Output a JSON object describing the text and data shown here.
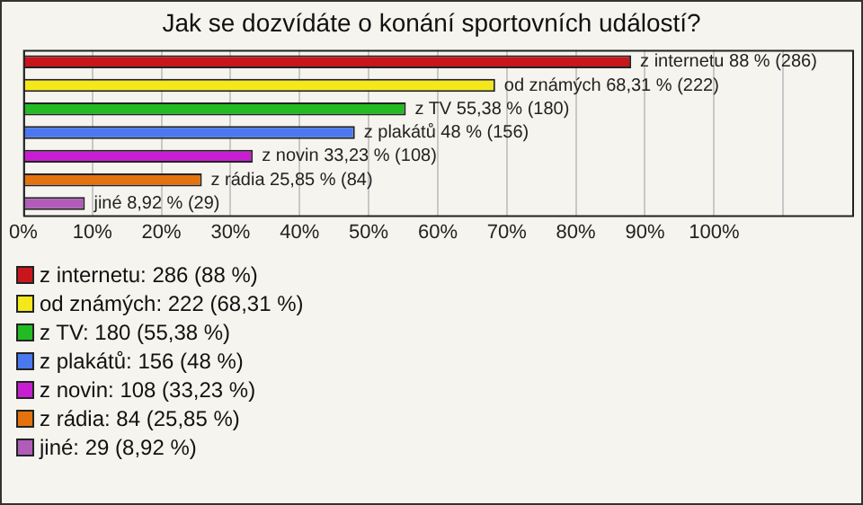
{
  "chart_data": {
    "type": "bar",
    "orientation": "horizontal",
    "stacked": true,
    "title": "Jak se dozvídáte o konání sportovních událostí?",
    "categories": [
      null,
      null,
      null,
      null,
      null,
      null,
      null
    ],
    "series": [
      {
        "name": "z internetu: 286 (88 %)",
        "color": "#c8161c",
        "values": [
          88,
          null,
          null,
          null,
          null,
          null,
          null
        ],
        "value_labels": [
          "z internetu 88 % (286)",
          null,
          null,
          null,
          null,
          null,
          null
        ]
      },
      {
        "name": "od známých: 222 (68,31 %)",
        "color": "#f5e81a",
        "values": [
          null,
          68.31,
          null,
          null,
          null,
          null,
          null
        ],
        "value_labels": [
          null,
          "od známých 68,31 % (222)",
          null,
          null,
          null,
          null,
          null
        ]
      },
      {
        "name": "z TV: 180 (55,38 %)",
        "color": "#22bb22",
        "values": [
          null,
          null,
          55.38,
          null,
          null,
          null,
          null
        ],
        "value_labels": [
          null,
          null,
          "z TV 55,38 % (180)",
          null,
          null,
          null,
          null
        ]
      },
      {
        "name": "z plakátů: 156 (48 %)",
        "color": "#4a78ee",
        "values": [
          null,
          null,
          null,
          48,
          null,
          null,
          null
        ],
        "value_labels": [
          null,
          null,
          null,
          "z plakátů 48 % (156)",
          null,
          null,
          null
        ]
      },
      {
        "name": "z novin: 108 (33,23 %)",
        "color": "#c81ed2",
        "values": [
          null,
          null,
          null,
          null,
          33.23,
          null,
          null
        ],
        "value_labels": [
          null,
          null,
          null,
          null,
          "z novin 33,23 % (108)",
          null,
          null
        ]
      },
      {
        "name": "z rádia: 84 (25,85 %)",
        "color": "#e4720e",
        "values": [
          null,
          null,
          null,
          null,
          null,
          25.85,
          null
        ],
        "value_labels": [
          null,
          null,
          null,
          null,
          null,
          "z rádia 25,85 % (84)",
          null
        ]
      },
      {
        "name": "jiné: 29 (8,92 %)",
        "color": "#b05cb8",
        "values": [
          null,
          null,
          null,
          null,
          null,
          null,
          8.92
        ],
        "value_labels": [
          null,
          null,
          null,
          null,
          null,
          null,
          "jiné 8,92 % (29)"
        ]
      }
    ],
    "xlim": [
      0,
      120
    ],
    "xticks": [
      {
        "value": 0,
        "label": "0%"
      },
      {
        "value": 10,
        "label": "10%"
      },
      {
        "value": 20,
        "label": "20%"
      },
      {
        "value": 30,
        "label": "30%"
      },
      {
        "value": 40,
        "label": "40%"
      },
      {
        "value": 50,
        "label": "50%"
      },
      {
        "value": 60,
        "label": "60%"
      },
      {
        "value": 70,
        "label": "70%"
      },
      {
        "value": 80,
        "label": "80%"
      },
      {
        "value": 90,
        "label": "90%"
      },
      {
        "value": 100,
        "label": "100%"
      },
      {
        "value": 110,
        "label": null
      }
    ],
    "grid": "x",
    "legend": "bottom"
  }
}
